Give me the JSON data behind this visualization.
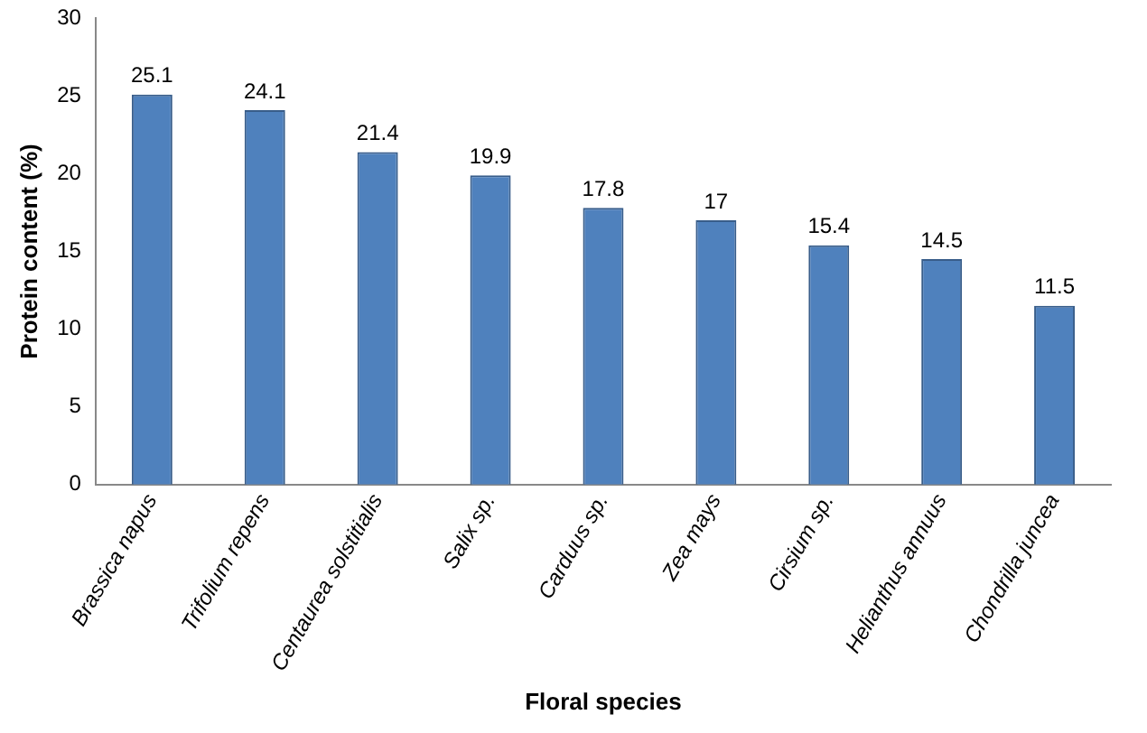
{
  "chart_data": {
    "type": "bar",
    "xlabel": "Floral species",
    "ylabel": "Protein content (%)",
    "categories": [
      "Brassica napus",
      "Trifolium repens",
      "Centaurea solstitialis",
      "Salix sp.",
      "Carduus sp.",
      "Zea mays",
      "Cirsium sp.",
      "Helianthus annuus",
      "Chondrilla juncea"
    ],
    "values": [
      25.1,
      24.1,
      21.4,
      19.9,
      17.8,
      17,
      15.4,
      14.5,
      11.5
    ],
    "color": "#4f81bd",
    "ylim": [
      0,
      30
    ],
    "yticks": [
      0,
      5,
      10,
      15,
      20,
      25,
      30
    ],
    "grid": false,
    "legend": false,
    "data_labels": true
  }
}
